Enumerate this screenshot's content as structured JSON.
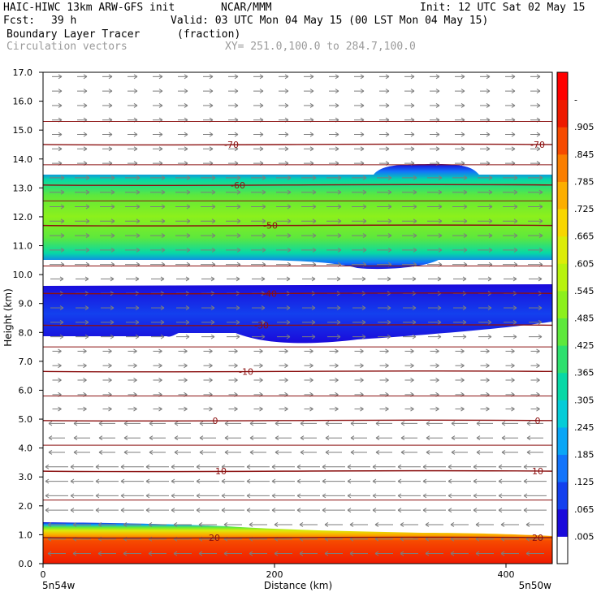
{
  "header": {
    "model": "HAIC-HIWC 13km ARW-GFS init",
    "center": "NCAR/MMM",
    "init": "Init: 12 UTC Sat 02 May 15",
    "fcst_label": "Fcst:",
    "fcst_value": "39 h",
    "valid": "Valid: 03 UTC Mon 04 May 15 (00 LST Mon 04 May 15)",
    "field": "Boundary Layer Tracer",
    "field_units": "(fraction)",
    "vectors": "Circulation vectors",
    "xy": "XY= 251.0,100.0 to 284.7,100.0"
  },
  "chart_data": {
    "type": "heatmap",
    "title": "Boundary Layer Tracer (fraction)",
    "xlabel": "Distance (km)",
    "ylabel": "Height (km)",
    "xlim": [
      0,
      440
    ],
    "ylim": [
      0.0,
      17.0
    ],
    "x_ticks": [
      "0",
      "200",
      "400"
    ],
    "x_endpoints": [
      "5n54w",
      "5n50w"
    ],
    "y_ticks": [
      "0.0",
      "1.0",
      "2.0",
      "3.0",
      "4.0",
      "5.0",
      "6.0",
      "7.0",
      "8.0",
      "9.0",
      "10.0",
      "11.0",
      "12.0",
      "13.0",
      "14.0",
      "15.0",
      "16.0",
      "17.0"
    ],
    "colorbar_labels": [
      ".005",
      ".065",
      ".125",
      ".185",
      ".245",
      ".305",
      ".365",
      ".425",
      ".485",
      ".545",
      ".605",
      ".665",
      ".725",
      ".785",
      ".845",
      ".905",
      "-"
    ],
    "colorbar_colors": [
      "#ffffff",
      "#1a0adb",
      "#1340ee",
      "#1274fb",
      "#0aa6f6",
      "#04ccd8",
      "#07d8a6",
      "#2ee06e",
      "#5ee83c",
      "#8cf01c",
      "#b8f20e",
      "#dcec08",
      "#f8d600",
      "#fcae00",
      "#fa7e00",
      "#f64a00",
      "#ee1a00",
      "#ff0000"
    ],
    "tracer_layers": [
      {
        "name": "surface",
        "bottom": 0.0,
        "top_left": 1.3,
        "top_right": 1.0,
        "max": 0.95
      },
      {
        "name": "mid",
        "bottom_left": 8.3,
        "bottom_right": 8.4,
        "top": 9.6,
        "max": 0.12
      },
      {
        "name": "upper",
        "bottom": 10.4,
        "top": 13.4,
        "max": 0.42
      }
    ],
    "temperature_contours": [
      {
        "value": -70,
        "label": "-70",
        "height": 14.5
      },
      {
        "value": -60,
        "label": "-60",
        "height": 13.1
      },
      {
        "value": -50,
        "label": "-50",
        "height": 11.7
      },
      {
        "value": -40,
        "label": "-40",
        "height": 9.35
      },
      {
        "value": -30,
        "label": "-30",
        "height": 8.25
      },
      {
        "value": -10,
        "label": "-10",
        "height": 6.65
      },
      {
        "value": 0,
        "label": "0",
        "height": 4.95
      },
      {
        "value": 10,
        "label": "10",
        "height": 3.2
      },
      {
        "value": 20,
        "label": "20",
        "height": 0.9
      }
    ],
    "wind_vectors": {
      "direction_above_5km": "east",
      "direction_below_5km": "west"
    }
  }
}
